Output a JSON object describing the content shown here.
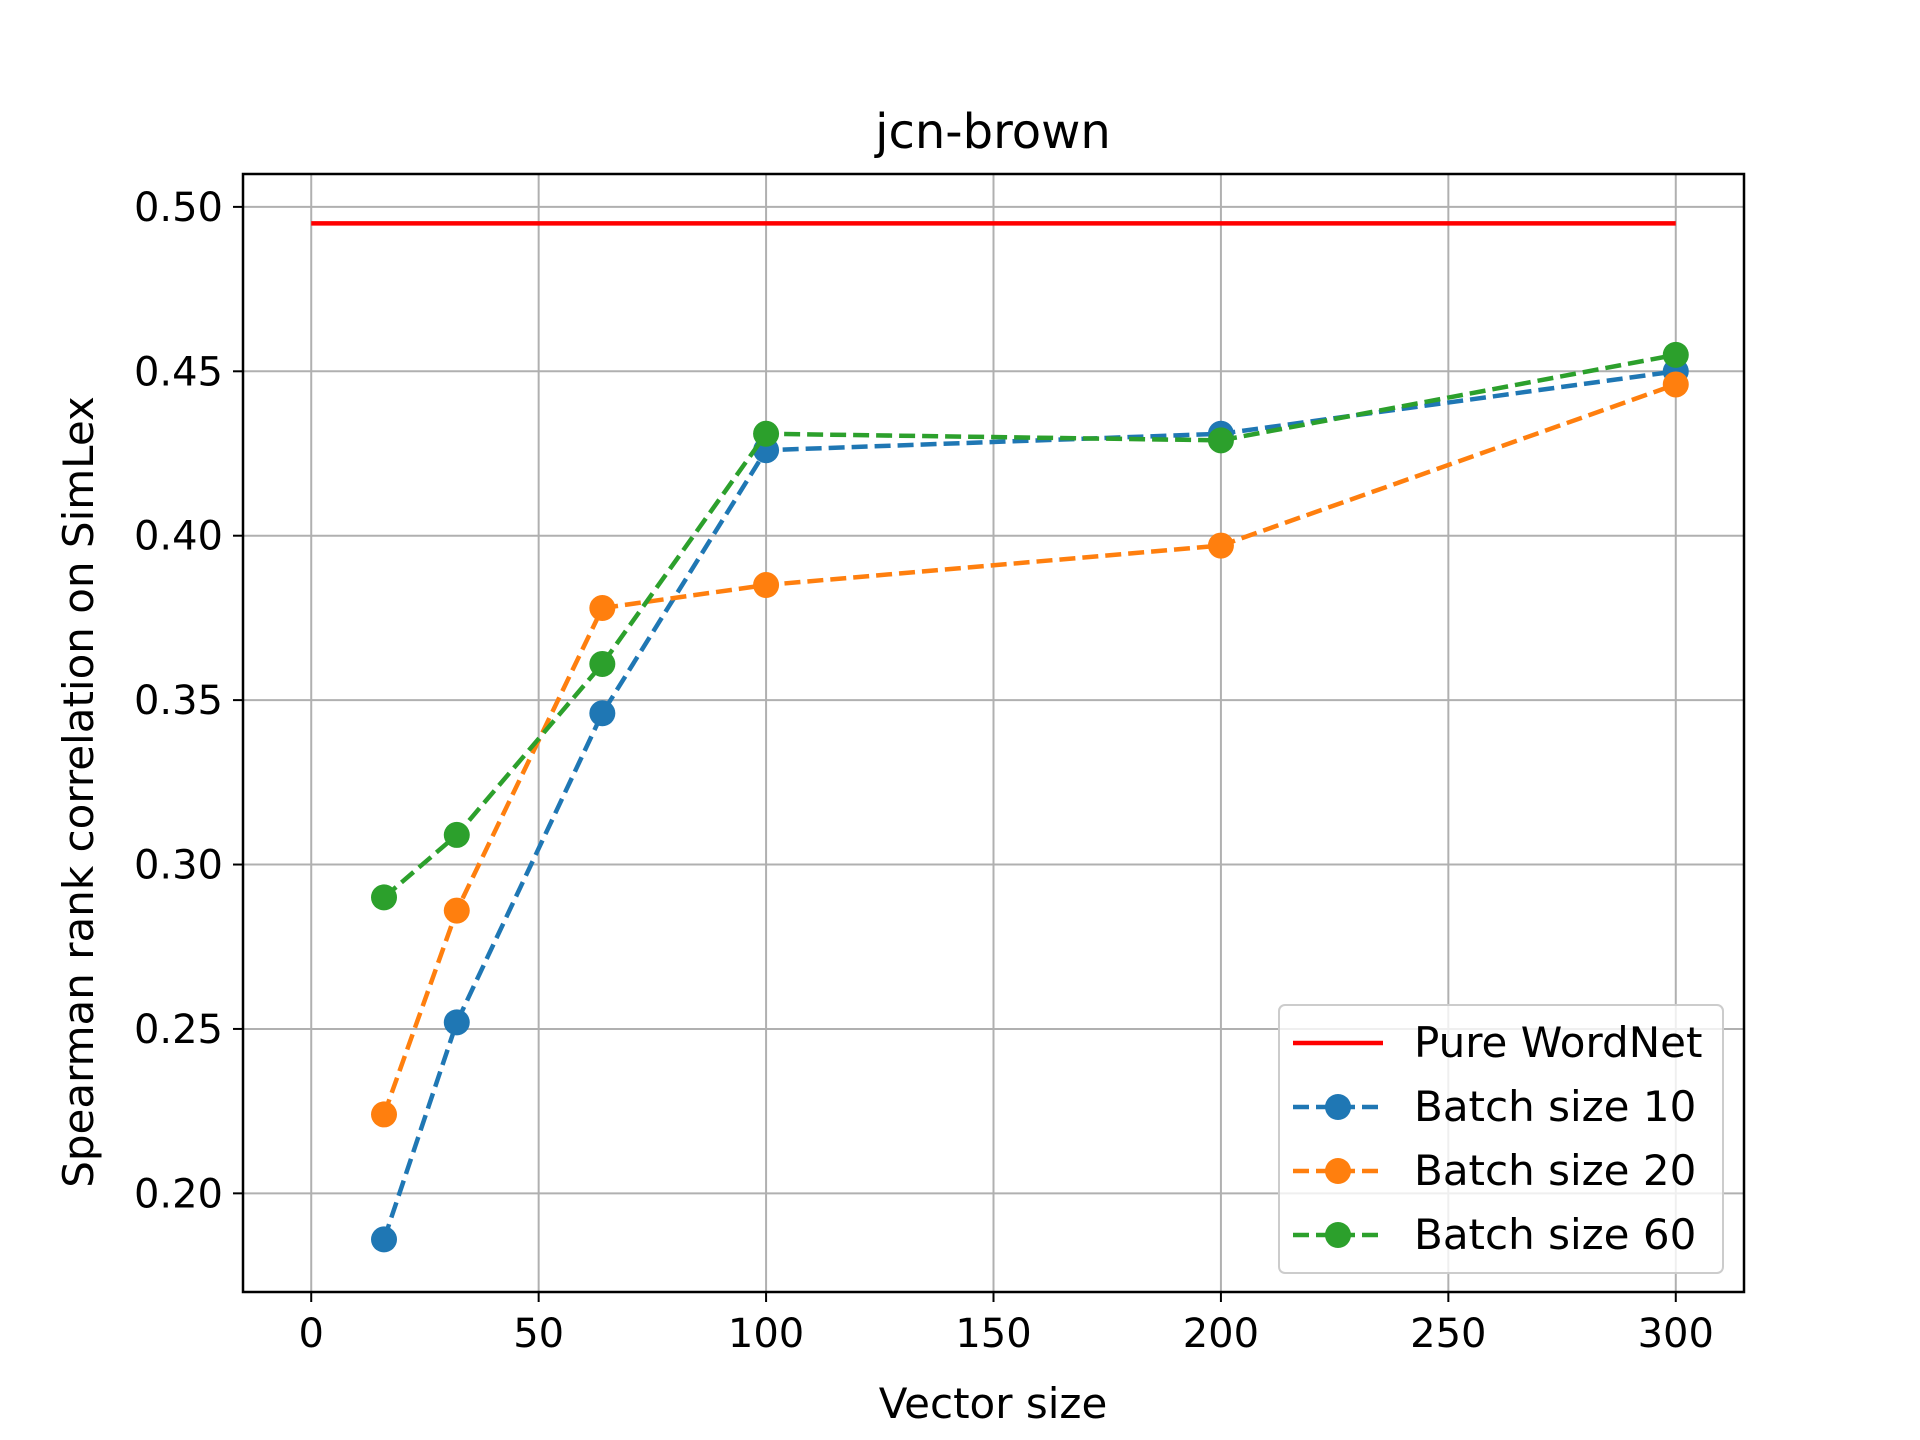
{
  "chart_data": {
    "type": "line",
    "title": "jcn-brown",
    "xlabel": "Vector size",
    "ylabel": "Spearman rank correlation on SimLex",
    "xlim": [
      -15,
      315
    ],
    "ylim": [
      0.17,
      0.51
    ],
    "x_ticks": [
      0,
      50,
      100,
      150,
      200,
      250,
      300
    ],
    "x_tick_labels": [
      "0",
      "50",
      "100",
      "150",
      "200",
      "250",
      "300"
    ],
    "y_ticks": [
      0.2,
      0.25,
      0.3,
      0.35,
      0.4,
      0.45,
      0.5
    ],
    "y_tick_labels": [
      "0.20",
      "0.25",
      "0.30",
      "0.35",
      "0.40",
      "0.45",
      "0.50"
    ],
    "grid": true,
    "legend_position": "bottom-right",
    "series": [
      {
        "name": "Pure WordNet",
        "color": "#ff0000",
        "style": "solid",
        "marker": "none",
        "x": [
          0,
          300
        ],
        "y": [
          0.495,
          0.495
        ]
      },
      {
        "name": "Batch size 10",
        "color": "#1f77b4",
        "style": "dashed",
        "marker": "circle",
        "x": [
          16,
          32,
          64,
          100,
          200,
          300
        ],
        "y": [
          0.186,
          0.252,
          0.346,
          0.426,
          0.431,
          0.45
        ]
      },
      {
        "name": "Batch size 20",
        "color": "#ff7f0e",
        "style": "dashed",
        "marker": "circle",
        "x": [
          16,
          32,
          64,
          100,
          200,
          300
        ],
        "y": [
          0.224,
          0.286,
          0.378,
          0.385,
          0.397,
          0.446
        ]
      },
      {
        "name": "Batch size 60",
        "color": "#2ca02c",
        "style": "dashed",
        "marker": "circle",
        "x": [
          16,
          32,
          64,
          100,
          200,
          300
        ],
        "y": [
          0.29,
          0.309,
          0.361,
          0.431,
          0.429,
          0.455
        ]
      }
    ]
  }
}
